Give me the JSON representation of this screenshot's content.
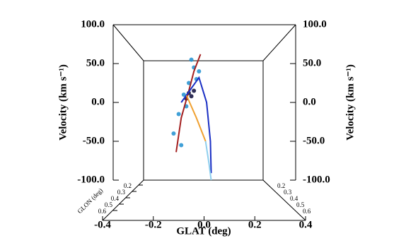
{
  "chart_data": {
    "type": "scatter",
    "xlabel": "GLAT (deg)",
    "ylabel": "Velocity (km s⁻¹)",
    "zlabel": "GLON (deg)",
    "xlim": [
      -0.4,
      0.4
    ],
    "xticks": [
      -0.4,
      -0.2,
      {
        "value": 0,
        "label": "0.0"
      },
      0.2,
      0.4
    ],
    "ylim": [
      -100,
      100
    ],
    "yticks": [
      {
        "value": 100,
        "label": "100.0"
      },
      {
        "value": 50,
        "label": "50.0"
      },
      {
        "value": 0,
        "label": "0.0"
      },
      {
        "value": -50,
        "label": "-50.0"
      },
      {
        "value": -100,
        "label": "-100.0"
      }
    ],
    "zticks": [
      0.2,
      0.3,
      0.4,
      0.5,
      0.6
    ],
    "lines": [
      {
        "color": "#a31f1f",
        "x": [
          -0.11,
          -0.09,
          -0.06,
          -0.04,
          -0.014
        ],
        "values": [
          -64,
          -20,
          15,
          40,
          62
        ]
      },
      {
        "color": "#1a2fc4",
        "x": [
          -0.09,
          -0.02,
          0.01,
          0.025,
          0.028
        ],
        "values": [
          0,
          32,
          0,
          -50,
          -91
        ]
      },
      {
        "color": "#f0a030",
        "x": [
          -0.069,
          -0.03,
          0.006
        ],
        "values": [
          9,
          -20,
          -50
        ]
      },
      {
        "color": "#8ecfee",
        "x": [
          0.006,
          0.02,
          0.028
        ],
        "values": [
          -50,
          -80,
          -100
        ]
      }
    ],
    "series": [
      {
        "color": "#1f8fd0",
        "x": [
          -0.05,
          -0.04,
          -0.02,
          -0.06,
          -0.08,
          -0.1,
          -0.12,
          -0.07,
          -0.03,
          -0.09
        ],
        "values": [
          55,
          45,
          40,
          25,
          10,
          -15,
          -40,
          -5,
          30,
          -55
        ]
      },
      {
        "color": "#0a0a3a",
        "x": [
          -0.06,
          -0.05,
          -0.07,
          -0.04
        ],
        "values": [
          12,
          8,
          5,
          15
        ]
      }
    ]
  }
}
